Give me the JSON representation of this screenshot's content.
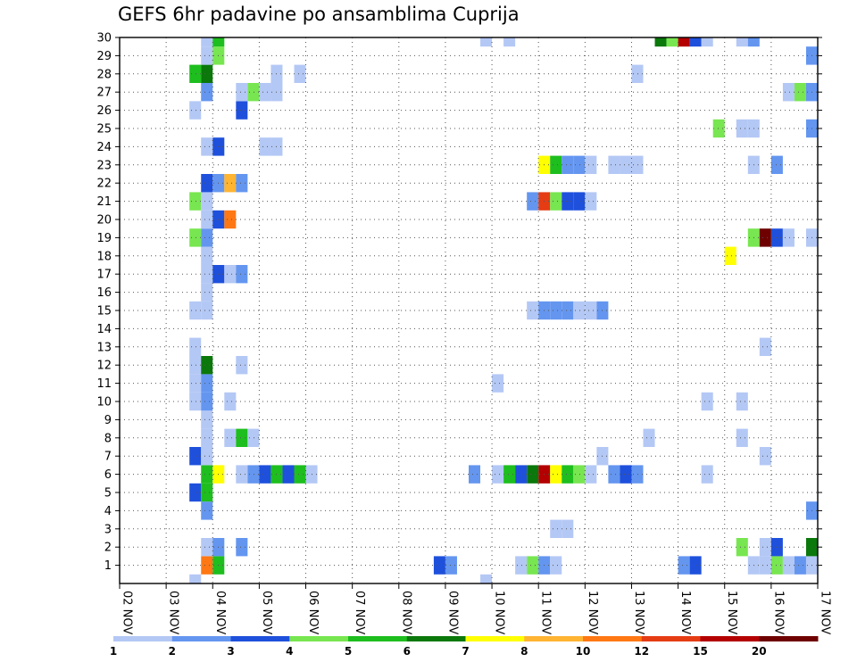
{
  "chart_data": {
    "type": "heatmap",
    "title": "GEFS 6hr padavine po ansamblima Cuprija",
    "xlabel": "",
    "ylabel": "",
    "x_tick_labels": [
      "02 NOV",
      "03 NOV",
      "04 NOV",
      "05 NOV",
      "06 NOV",
      "07 NOV",
      "08 NOV",
      "09 NOV",
      "10 NOV",
      "11 NOV",
      "12 NOV",
      "13 NOV",
      "14 NOV",
      "15 NOV",
      "16 NOV",
      "17 NOV"
    ],
    "x_range_days": [
      2,
      17
    ],
    "steps_per_day": 4,
    "y_range": [
      0,
      30
    ],
    "y_tick_labels": [
      "1",
      "2",
      "3",
      "4",
      "5",
      "6",
      "7",
      "8",
      "9",
      "10",
      "11",
      "12",
      "13",
      "14",
      "15",
      "16",
      "17",
      "18",
      "19",
      "20",
      "21",
      "22",
      "23",
      "24",
      "25",
      "26",
      "27",
      "28",
      "29",
      "30"
    ],
    "grid": true,
    "legend": {
      "placement": "bottom",
      "boundaries": [
        "1",
        "2",
        "3",
        "4",
        "5",
        "6",
        "7",
        "8",
        "10",
        "12",
        "15",
        "20"
      ],
      "colors": [
        "#b4c8f5",
        "#6496f0",
        "#1e50dc",
        "#78e650",
        "#1ebe1e",
        "#0a780a",
        "#ffff00",
        "#ffb432",
        "#ff7814",
        "#e63c14",
        "#b40000",
        "#6e0000"
      ]
    },
    "cell_value_units": "color class index (0..11) into legend.colors",
    "cells": [
      [
        3.75,
        1,
        8
      ],
      [
        4.0,
        1,
        4
      ],
      [
        8.75,
        1,
        2
      ],
      [
        9.0,
        1,
        1
      ],
      [
        10.5,
        1,
        0
      ],
      [
        10.75,
        1,
        3
      ],
      [
        11.0,
        1,
        1
      ],
      [
        11.25,
        1,
        0
      ],
      [
        14.0,
        1,
        1
      ],
      [
        14.25,
        1,
        2
      ],
      [
        15.5,
        1,
        0
      ],
      [
        15.75,
        1,
        0
      ],
      [
        16.0,
        1,
        3
      ],
      [
        16.25,
        1,
        0
      ],
      [
        16.5,
        1,
        1
      ],
      [
        16.75,
        1,
        0
      ],
      [
        3.75,
        2,
        0
      ],
      [
        4.0,
        2,
        1
      ],
      [
        4.5,
        2,
        1
      ],
      [
        15.25,
        2,
        3
      ],
      [
        15.75,
        2,
        0
      ],
      [
        16.0,
        2,
        2
      ],
      [
        16.75,
        2,
        5
      ],
      [
        11.25,
        3,
        0
      ],
      [
        11.5,
        3,
        0
      ],
      [
        3.75,
        4,
        1
      ],
      [
        16.75,
        4,
        1
      ],
      [
        3.5,
        5,
        2
      ],
      [
        3.75,
        5,
        4
      ],
      [
        3.75,
        6,
        4
      ],
      [
        4.0,
        6,
        6
      ],
      [
        4.5,
        6,
        0
      ],
      [
        4.75,
        6,
        1
      ],
      [
        5.0,
        6,
        2
      ],
      [
        5.25,
        6,
        4
      ],
      [
        5.5,
        6,
        2
      ],
      [
        5.75,
        6,
        4
      ],
      [
        6.0,
        6,
        0
      ],
      [
        9.5,
        6,
        1
      ],
      [
        10.0,
        6,
        0
      ],
      [
        10.25,
        6,
        4
      ],
      [
        10.5,
        6,
        2
      ],
      [
        10.75,
        6,
        5
      ],
      [
        11.0,
        6,
        10
      ],
      [
        11.25,
        6,
        6
      ],
      [
        11.5,
        6,
        4
      ],
      [
        11.75,
        6,
        3
      ],
      [
        12.0,
        6,
        0
      ],
      [
        12.5,
        6,
        1
      ],
      [
        12.75,
        6,
        2
      ],
      [
        13.0,
        6,
        1
      ],
      [
        14.5,
        6,
        0
      ],
      [
        3.5,
        7,
        2
      ],
      [
        3.75,
        7,
        0
      ],
      [
        12.25,
        7,
        0
      ],
      [
        15.75,
        7,
        0
      ],
      [
        3.75,
        8,
        0
      ],
      [
        4.25,
        8,
        0
      ],
      [
        4.5,
        8,
        4
      ],
      [
        4.75,
        8,
        0
      ],
      [
        13.25,
        8,
        0
      ],
      [
        15.25,
        8,
        0
      ],
      [
        3.75,
        9,
        0
      ],
      [
        3.5,
        10,
        0
      ],
      [
        3.75,
        10,
        1
      ],
      [
        4.25,
        10,
        0
      ],
      [
        14.5,
        10,
        0
      ],
      [
        15.25,
        10,
        0
      ],
      [
        3.5,
        11,
        0
      ],
      [
        3.75,
        11,
        1
      ],
      [
        10.0,
        11,
        0
      ],
      [
        3.5,
        12,
        0
      ],
      [
        3.75,
        12,
        5
      ],
      [
        4.5,
        12,
        0
      ],
      [
        3.5,
        13,
        0
      ],
      [
        15.75,
        13,
        0
      ],
      [
        3.5,
        15,
        0
      ],
      [
        3.75,
        15,
        0
      ],
      [
        10.75,
        15,
        0
      ],
      [
        11.0,
        15,
        1
      ],
      [
        11.25,
        15,
        1
      ],
      [
        11.5,
        15,
        1
      ],
      [
        11.75,
        15,
        0
      ],
      [
        12.0,
        15,
        0
      ],
      [
        12.25,
        15,
        1
      ],
      [
        3.75,
        16,
        0
      ],
      [
        3.75,
        17,
        0
      ],
      [
        4.0,
        17,
        2
      ],
      [
        4.25,
        17,
        0
      ],
      [
        4.5,
        17,
        1
      ],
      [
        3.75,
        18,
        0
      ],
      [
        15.0,
        18,
        6
      ],
      [
        3.5,
        19,
        3
      ],
      [
        3.75,
        19,
        1
      ],
      [
        15.5,
        19,
        3
      ],
      [
        15.75,
        19,
        11
      ],
      [
        16.0,
        19,
        2
      ],
      [
        16.25,
        19,
        0
      ],
      [
        16.75,
        19,
        0
      ],
      [
        3.75,
        20,
        0
      ],
      [
        4.0,
        20,
        2
      ],
      [
        4.25,
        20,
        8
      ],
      [
        3.5,
        21,
        3
      ],
      [
        3.75,
        21,
        0
      ],
      [
        10.75,
        21,
        1
      ],
      [
        11.0,
        21,
        9
      ],
      [
        11.25,
        21,
        3
      ],
      [
        11.5,
        21,
        2
      ],
      [
        11.75,
        21,
        2
      ],
      [
        12.0,
        21,
        0
      ],
      [
        3.75,
        22,
        2
      ],
      [
        4.0,
        22,
        1
      ],
      [
        4.25,
        22,
        7
      ],
      [
        4.5,
        22,
        1
      ],
      [
        11.0,
        23,
        6
      ],
      [
        11.25,
        23,
        4
      ],
      [
        11.5,
        23,
        1
      ],
      [
        11.75,
        23,
        1
      ],
      [
        12.0,
        23,
        0
      ],
      [
        12.5,
        23,
        0
      ],
      [
        12.75,
        23,
        0
      ],
      [
        13.0,
        23,
        0
      ],
      [
        15.5,
        23,
        0
      ],
      [
        16.0,
        23,
        1
      ],
      [
        3.75,
        24,
        0
      ],
      [
        4.0,
        24,
        2
      ],
      [
        5.0,
        24,
        0
      ],
      [
        5.25,
        24,
        0
      ],
      [
        14.75,
        25,
        3
      ],
      [
        15.25,
        25,
        0
      ],
      [
        15.5,
        25,
        0
      ],
      [
        16.75,
        25,
        1
      ],
      [
        3.5,
        26,
        0
      ],
      [
        4.5,
        26,
        2
      ],
      [
        3.75,
        27,
        1
      ],
      [
        4.5,
        27,
        0
      ],
      [
        4.75,
        27,
        3
      ],
      [
        5.0,
        27,
        0
      ],
      [
        5.25,
        27,
        0
      ],
      [
        16.25,
        27,
        0
      ],
      [
        16.5,
        27,
        3
      ],
      [
        16.75,
        27,
        1
      ],
      [
        3.5,
        28,
        4
      ],
      [
        3.75,
        28,
        5
      ],
      [
        5.25,
        28,
        0
      ],
      [
        5.75,
        28,
        0
      ],
      [
        13.0,
        28,
        0
      ],
      [
        3.75,
        29,
        0
      ],
      [
        4.0,
        29,
        3
      ],
      [
        16.75,
        29,
        1
      ],
      [
        3.75,
        30,
        0
      ],
      [
        4.0,
        30,
        4
      ],
      [
        9.75,
        30,
        0
      ],
      [
        10.25,
        30,
        0
      ],
      [
        13.5,
        30,
        5
      ],
      [
        13.75,
        30,
        3
      ],
      [
        14.0,
        30,
        10
      ],
      [
        14.25,
        30,
        2
      ],
      [
        14.5,
        30,
        0
      ],
      [
        15.25,
        30,
        0
      ],
      [
        15.5,
        30,
        1
      ],
      [
        3.5,
        0,
        0
      ],
      [
        9.75,
        0,
        0
      ]
    ]
  }
}
